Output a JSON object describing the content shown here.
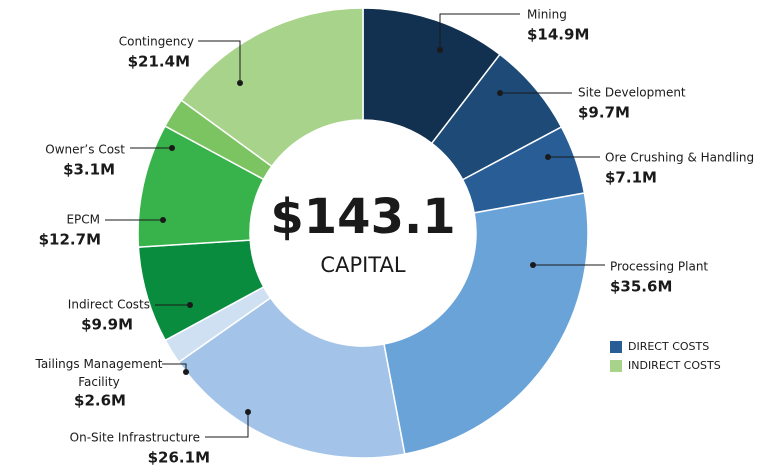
{
  "chart_data": {
    "type": "donut",
    "center_label": "$143.1",
    "center_sublabel": "CAPITAL",
    "categories": [
      "Mining",
      "Site Development",
      "Ore Crushing & Handling",
      "Processing Plant",
      "On-Site Infrastructure",
      "Tailings Management Facility",
      "Indirect Costs",
      "EPCM",
      "Owner’s Cost",
      "Contingency"
    ],
    "values": [
      14.9,
      9.7,
      7.1,
      35.6,
      26.1,
      2.6,
      9.9,
      12.7,
      3.1,
      21.4
    ],
    "value_labels": [
      "$14.9M",
      "$9.7M",
      "$7.1M",
      "$35.6M",
      "$26.1M",
      "$2.6M",
      "$9.9M",
      "$12.7M",
      "$3.1M",
      "$21.4M"
    ],
    "colors": [
      "#12304f",
      "#1d4a76",
      "#285d96",
      "#6aa3d8",
      "#a3c4e8",
      "#cfe0f3",
      "#0a8c3f",
      "#38b24a",
      "#7cc462",
      "#a8d38a"
    ],
    "legend": [
      {
        "name": "DIRECT COSTS",
        "color": "#285d96"
      },
      {
        "name": "INDIRECT COSTS",
        "color": "#a8d38a"
      }
    ]
  }
}
